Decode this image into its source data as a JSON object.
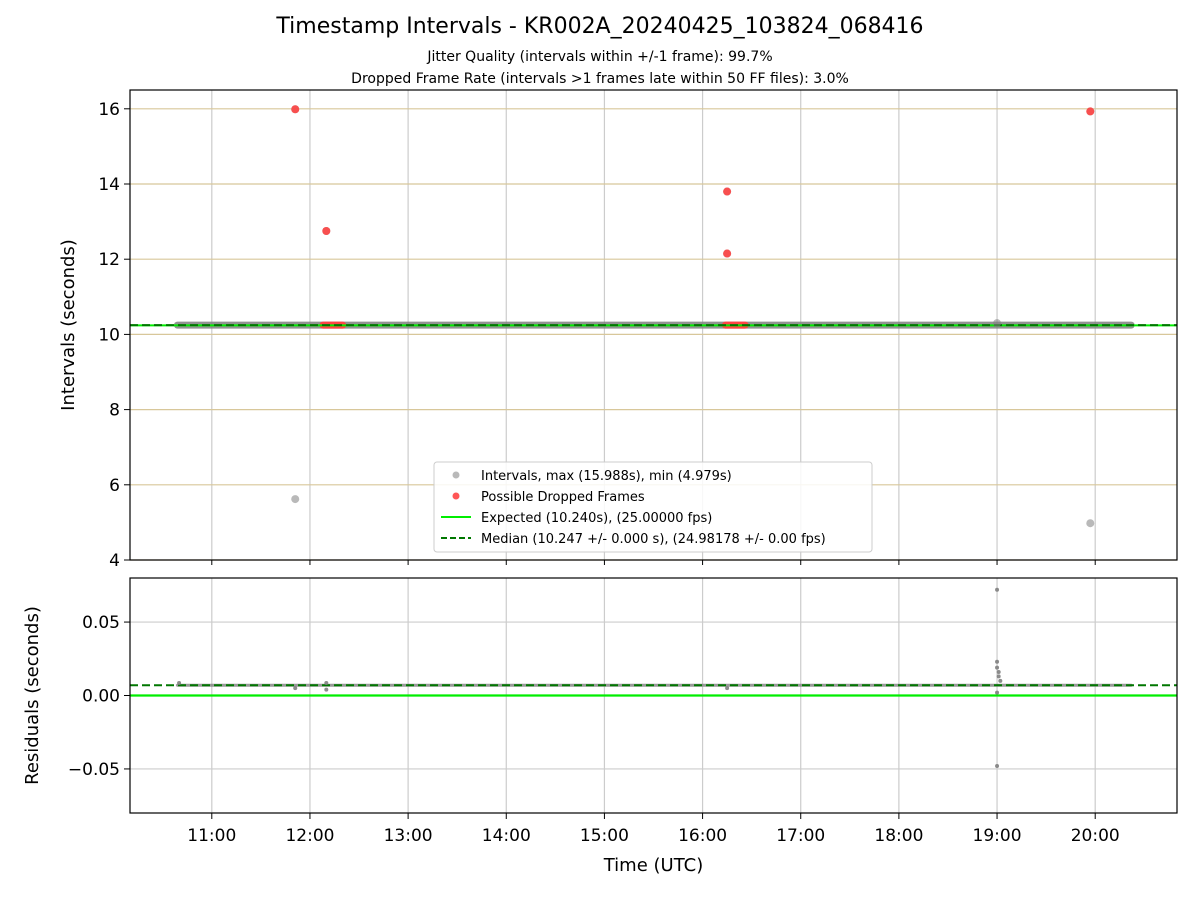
{
  "header": {
    "title": "Timestamp Intervals - KR002A_20240425_103824_068416",
    "subtitle1": "Jitter Quality (intervals within +/-1 frame): 99.7%",
    "subtitle2": "Dropped Frame Rate (intervals >1 frames late within 50 FF files): 3.0%"
  },
  "chart_data": [
    {
      "type": "scatter",
      "ylabel": "Intervals (seconds)",
      "ylim": [
        4,
        16.5
      ],
      "xlim": [
        "10:10",
        "20:50"
      ],
      "x_ticks": [
        "11:00",
        "12:00",
        "13:00",
        "14:00",
        "15:00",
        "16:00",
        "17:00",
        "18:00",
        "19:00",
        "20:00"
      ],
      "y_ticks": [
        "4",
        "6",
        "8",
        "10",
        "12",
        "14",
        "16"
      ],
      "grid": true,
      "legend_position": "lower center",
      "series": [
        {
          "name": "Intervals, max (15.988s), min (4.979s)",
          "color": "#808080",
          "band": {
            "x_start": "10:39",
            "x_end": "20:22",
            "y": 10.247
          },
          "points": [
            {
              "x": "11:51",
              "y": 15.988
            },
            {
              "x": "11:51",
              "y": 5.62
            },
            {
              "x": "12:10",
              "y": 12.75
            },
            {
              "x": "16:15",
              "y": 13.8
            },
            {
              "x": "16:15",
              "y": 12.15
            },
            {
              "x": "19:00",
              "y": 10.3
            },
            {
              "x": "19:57",
              "y": 15.93
            },
            {
              "x": "19:57",
              "y": 4.979
            }
          ]
        },
        {
          "name": "Possible Dropped Frames",
          "color": "#ff4444",
          "points": [
            {
              "x": "11:51",
              "y": 15.988
            },
            {
              "x": "12:10",
              "y": 12.75
            },
            {
              "x": "16:15",
              "y": 13.8
            },
            {
              "x": "16:15",
              "y": 12.15
            },
            {
              "x": "19:57",
              "y": 15.93
            }
          ],
          "clusters": [
            {
              "x_start": "12:08",
              "x_end": "12:20",
              "y": 10.247
            },
            {
              "x_start": "16:14",
              "x_end": "16:26",
              "y": 10.247
            }
          ]
        },
        {
          "name": "Expected (10.240s), (25.00000 fps)",
          "color": "#00ee00",
          "style": "solid",
          "y": 10.24
        },
        {
          "name": "Median (10.247 +/- 0.000 s), (24.98178 +/- 0.00 fps)",
          "color": "#007700",
          "style": "dashed",
          "y": 10.247
        }
      ]
    },
    {
      "type": "scatter",
      "xlabel": "Time (UTC)",
      "ylabel": "Residuals (seconds)",
      "ylim": [
        -0.08,
        0.08
      ],
      "xlim": [
        "10:10",
        "20:50"
      ],
      "y_ticks": [
        "−0.05",
        "0.00",
        "0.05"
      ],
      "grid": true,
      "series": [
        {
          "name": "Residuals",
          "color": "#808080",
          "band": {
            "x_start": "10:39",
            "x_end": "20:22",
            "y": 0.007
          },
          "points": [
            {
              "x": "10:40",
              "y": 0.0085
            },
            {
              "x": "11:51",
              "y": 0.005
            },
            {
              "x": "12:10",
              "y": 0.004
            },
            {
              "x": "12:10",
              "y": 0.0085
            },
            {
              "x": "16:15",
              "y": 0.005
            },
            {
              "x": "19:00",
              "y": 0.072
            },
            {
              "x": "19:00",
              "y": 0.023
            },
            {
              "x": "19:00",
              "y": 0.019
            },
            {
              "x": "19:01",
              "y": 0.016
            },
            {
              "x": "19:01",
              "y": 0.013
            },
            {
              "x": "19:02",
              "y": 0.01
            },
            {
              "x": "19:00",
              "y": 0.002
            },
            {
              "x": "19:00",
              "y": -0.048
            }
          ]
        },
        {
          "name": "Expected",
          "color": "#00ee00",
          "style": "solid",
          "y": 0.0
        },
        {
          "name": "Median",
          "color": "#007700",
          "style": "dashed",
          "y": 0.007
        }
      ]
    }
  ]
}
